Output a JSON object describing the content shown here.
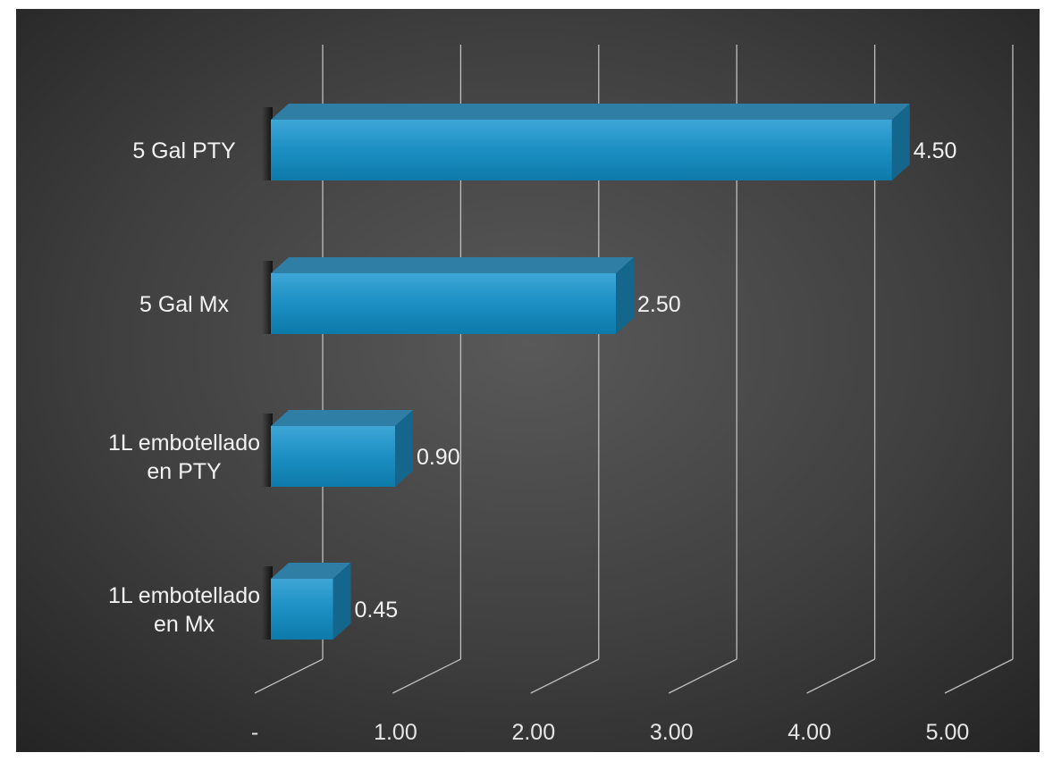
{
  "chart_data": {
    "type": "bar",
    "orientation": "horizontal",
    "three_d": true,
    "categories": [
      "5 Gal PTY",
      "5 Gal Mx",
      "1L embotellado en PTY",
      "1L embotellado en Mx"
    ],
    "category_lines": [
      [
        "5 Gal PTY"
      ],
      [
        "5 Gal Mx"
      ],
      [
        "1L embotellado",
        "en PTY"
      ],
      [
        "1L embotellado",
        "en Mx"
      ]
    ],
    "values": [
      4.5,
      2.5,
      0.9,
      0.45
    ],
    "data_labels": [
      "4.50",
      "2.50",
      "0.90",
      "0.45"
    ],
    "x_ticks": [
      "-",
      "1.00",
      "2.00",
      "3.00",
      "4.00",
      "5.00"
    ],
    "xlim": [
      0,
      5
    ],
    "grid": true,
    "legend": "none",
    "title": "",
    "xlabel": "",
    "ylabel": "",
    "colors": {
      "bar_front": "#1a8fc2",
      "bar_top": "#2f7ea6",
      "bar_side": "#15668d",
      "background": "#3d3d3d",
      "grid": "#bfbfbf",
      "text": "#f2f2f2"
    }
  }
}
